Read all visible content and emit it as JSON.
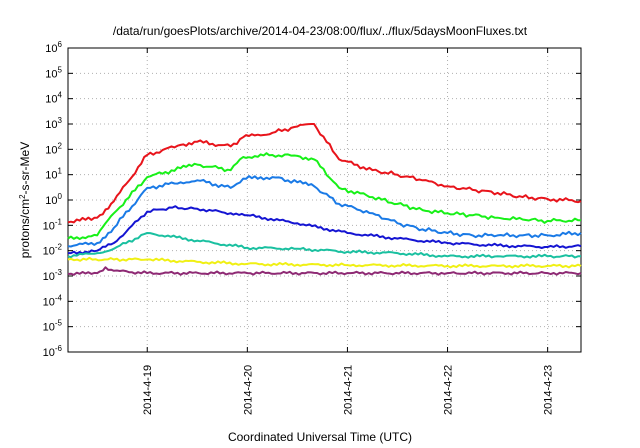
{
  "chart_data": {
    "type": "line",
    "title": "/data/run/goesPlots/archive/2014-04-23/08:00/flux/../flux/5daysMoonFluxes.txt",
    "xlabel": "Coordinated Universal Time (UTC)",
    "ylabel": {
      "prefix": "protons/cm",
      "sup": "2",
      "suffix": "-s-sr-MeV"
    },
    "y_scale": "log",
    "ylim": [
      1e-06,
      1000000.0
    ],
    "y_ticks": [
      {
        "exp": "-6",
        "value": 1e-06
      },
      {
        "exp": "-5",
        "value": 1e-05
      },
      {
        "exp": "-4",
        "value": 0.0001
      },
      {
        "exp": "-3",
        "value": 0.001
      },
      {
        "exp": "-2",
        "value": 0.01
      },
      {
        "exp": "-1",
        "value": 0.1
      },
      {
        "exp": "0",
        "value": 1
      },
      {
        "exp": "1",
        "value": 10
      },
      {
        "exp": "2",
        "value": 100
      },
      {
        "exp": "3",
        "value": 1000
      },
      {
        "exp": "4",
        "value": 10000.0
      },
      {
        "exp": "5",
        "value": 100000.0
      },
      {
        "exp": "6",
        "value": 1000000.0
      }
    ],
    "xlim": [
      "2014-04-18 05:00",
      "2014-04-23 08:00"
    ],
    "x_ticks": [
      "2014-4-19",
      "2014-4-20",
      "2014-4-21",
      "2014-4-22",
      "2014-4-23"
    ],
    "grid": true,
    "series": [
      {
        "color": "#e8141b",
        "x": [
          "2014-04-18 05:00",
          "2014-04-18 12:00",
          "2014-04-18 16:00",
          "2014-04-19 00:00",
          "2014-04-19 08:00",
          "2014-04-19 12:00",
          "2014-04-19 20:00",
          "2014-04-19 23:00",
          "2014-04-20 06:00",
          "2014-04-20 12:00",
          "2014-04-20 16:00",
          "2014-04-20 22:00",
          "2014-04-21 06:00",
          "2014-04-21 12:00",
          "2014-04-21 18:00",
          "2014-04-22 00:00",
          "2014-04-22 06:00",
          "2014-04-22 12:00",
          "2014-04-22 18:00",
          "2014-04-23 00:00",
          "2014-04-23 08:00"
        ],
        "y": [
          0.13,
          0.2,
          0.9,
          60,
          150,
          200,
          130,
          300,
          450,
          800,
          1000,
          40,
          15,
          10,
          6,
          3.5,
          2.5,
          1.9,
          1.3,
          1.1,
          0.9
        ]
      },
      {
        "color": "#18f018",
        "x": [
          "2014-04-18 05:00",
          "2014-04-18 12:00",
          "2014-04-18 16:00",
          "2014-04-19 00:00",
          "2014-04-19 08:00",
          "2014-04-19 12:00",
          "2014-04-19 20:00",
          "2014-04-19 23:00",
          "2014-04-20 06:00",
          "2014-04-20 12:00",
          "2014-04-20 16:00",
          "2014-04-20 22:00",
          "2014-04-21 06:00",
          "2014-04-21 12:00",
          "2014-04-21 18:00",
          "2014-04-22 00:00",
          "2014-04-22 06:00",
          "2014-04-22 12:00",
          "2014-04-22 18:00",
          "2014-04-23 00:00",
          "2014-04-23 08:00"
        ],
        "y": [
          0.03,
          0.04,
          0.3,
          8,
          18,
          25,
          15,
          50,
          60,
          55,
          40,
          3,
          1.3,
          0.7,
          0.4,
          0.3,
          0.25,
          0.2,
          0.17,
          0.15,
          0.16
        ]
      },
      {
        "color": "#1a7ae6",
        "x": [
          "2014-04-18 05:00",
          "2014-04-18 12:00",
          "2014-04-18 16:00",
          "2014-04-19 00:00",
          "2014-04-19 08:00",
          "2014-04-19 12:00",
          "2014-04-19 20:00",
          "2014-04-19 23:00",
          "2014-04-20 06:00",
          "2014-04-20 12:00",
          "2014-04-20 16:00",
          "2014-04-20 22:00",
          "2014-04-21 06:00",
          "2014-04-21 12:00",
          "2014-04-21 18:00",
          "2014-04-22 00:00",
          "2014-04-22 06:00",
          "2014-04-22 12:00",
          "2014-04-22 18:00",
          "2014-04-23 00:00",
          "2014-04-23 08:00"
        ],
        "y": [
          0.015,
          0.02,
          0.08,
          3,
          5,
          6,
          3,
          7,
          8,
          5,
          3.5,
          0.7,
          0.3,
          0.12,
          0.07,
          0.05,
          0.04,
          0.04,
          0.04,
          0.04,
          0.05
        ]
      },
      {
        "color": "#1414d2",
        "x": [
          "2014-04-18 05:00",
          "2014-04-18 12:00",
          "2014-04-18 16:00",
          "2014-04-19 00:00",
          "2014-04-19 06:00",
          "2014-04-19 12:00",
          "2014-04-19 20:00",
          "2014-04-20 00:00",
          "2014-04-20 12:00",
          "2014-04-21 00:00",
          "2014-04-21 12:00",
          "2014-04-22 00:00",
          "2014-04-22 12:00",
          "2014-04-23 00:00",
          "2014-04-23 08:00"
        ],
        "y": [
          0.008,
          0.01,
          0.02,
          0.35,
          0.5,
          0.45,
          0.3,
          0.25,
          0.12,
          0.05,
          0.03,
          0.02,
          0.016,
          0.014,
          0.015
        ]
      },
      {
        "color": "#1ac0a0",
        "x": [
          "2014-04-18 05:00",
          "2014-04-18 12:00",
          "2014-04-18 16:00",
          "2014-04-19 00:00",
          "2014-04-19 12:00",
          "2014-04-20 00:00",
          "2014-04-20 12:00",
          "2014-04-21 00:00",
          "2014-04-21 12:00",
          "2014-04-22 00:00",
          "2014-04-22 12:00",
          "2014-04-23 00:00",
          "2014-04-23 08:00"
        ],
        "y": [
          0.006,
          0.008,
          0.012,
          0.05,
          0.025,
          0.013,
          0.012,
          0.009,
          0.008,
          0.006,
          0.006,
          0.006,
          0.006
        ]
      },
      {
        "color": "#f0f014",
        "x": [
          "2014-04-18 05:00",
          "2014-04-18 16:00",
          "2014-04-19 00:00",
          "2014-04-19 12:00",
          "2014-04-20 00:00",
          "2014-04-20 12:00",
          "2014-04-21 00:00",
          "2014-04-21 12:00",
          "2014-04-22 00:00",
          "2014-04-22 12:00",
          "2014-04-23 00:00",
          "2014-04-23 08:00"
        ],
        "y": [
          0.0045,
          0.0045,
          0.0045,
          0.0036,
          0.003,
          0.0028,
          0.0027,
          0.0026,
          0.0025,
          0.0025,
          0.0025,
          0.0025
        ]
      },
      {
        "color": "#8e2a74",
        "x": [
          "2014-04-18 05:00",
          "2014-04-18 12:00",
          "2014-04-18 14:00",
          "2014-04-18 16:00",
          "2014-04-19 00:00",
          "2014-04-20 00:00",
          "2014-04-21 00:00",
          "2014-04-22 00:00",
          "2014-04-23 00:00",
          "2014-04-23 08:00"
        ],
        "y": [
          0.0012,
          0.0013,
          0.0022,
          0.0016,
          0.0013,
          0.0013,
          0.0013,
          0.0013,
          0.0013,
          0.0013
        ]
      }
    ]
  }
}
